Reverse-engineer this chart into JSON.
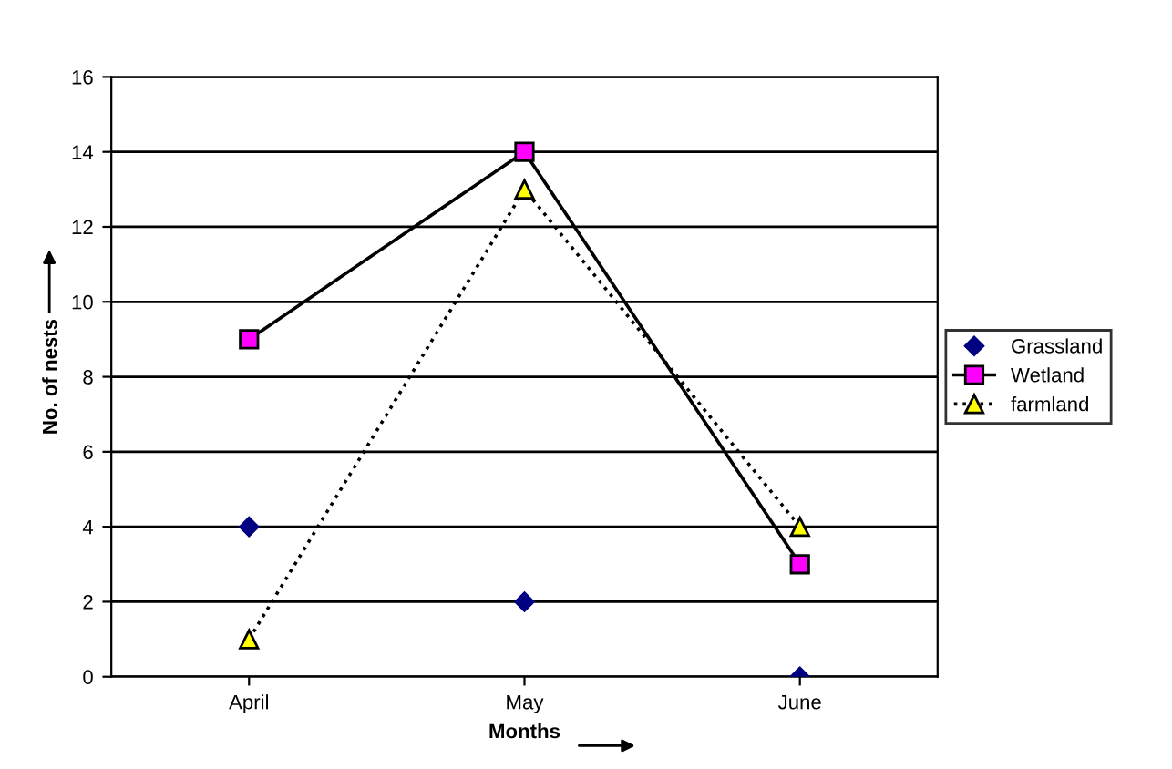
{
  "chart_data": {
    "type": "line",
    "xlabel": "Months",
    "ylabel": "No. of nests",
    "categories": [
      "April",
      "May",
      "June"
    ],
    "series": [
      {
        "name": "Grassland",
        "color": "#000080",
        "values": [
          4,
          2,
          0
        ],
        "marker": "diamond",
        "type": "scatter"
      },
      {
        "name": "Wetland",
        "color": "#ff00ff",
        "values": [
          9,
          14,
          3
        ],
        "marker": "square",
        "line_style": "solid"
      },
      {
        "name": "farmland",
        "color": "#ffff00",
        "values": [
          1,
          13,
          4
        ],
        "marker": "triangle",
        "line_style": "dotted"
      }
    ],
    "ylim": [
      0,
      16
    ],
    "yticks": [
      0,
      2,
      4,
      6,
      8,
      10,
      12,
      14,
      16
    ],
    "grid": "y",
    "legend": "right"
  }
}
